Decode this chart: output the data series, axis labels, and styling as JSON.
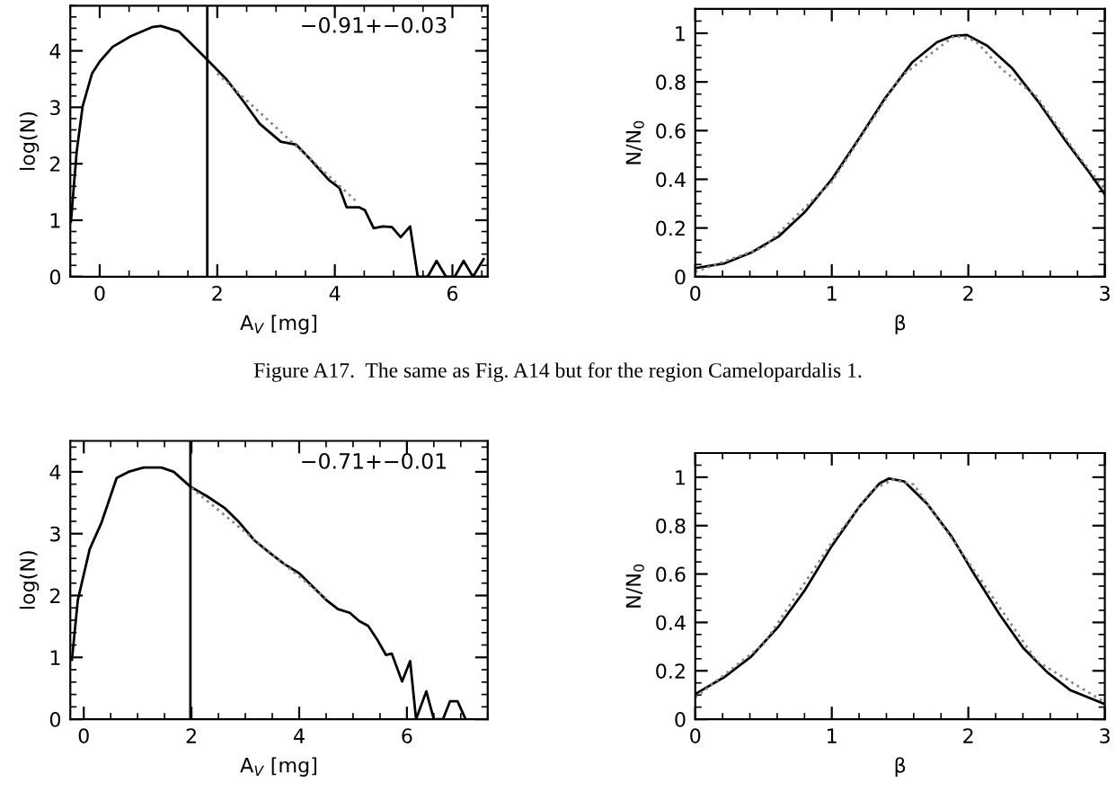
{
  "chart_data": [
    {
      "type": "line",
      "xlabel": "A$_{V}$ [mg]",
      "ylabel": "log(N)",
      "xlim": [
        -0.5,
        6.6
      ],
      "ylim": [
        0,
        4.8
      ],
      "xticks": [
        0,
        2,
        4,
        6
      ],
      "yticks": [
        0,
        1,
        2,
        3,
        4
      ],
      "annotations": [
        "−0.91+−0.03",
        "Figure A17.  The same as Fig. A14 but for the region Camelopardalis 1."
      ],
      "ref_lines": [
        {
          "axis": "x",
          "value": 1.83,
          "color": "#000000"
        }
      ],
      "series": [
        {
          "color": "#000000",
          "line_style": "solid",
          "x": [
            -0.49,
            -0.39,
            -0.29,
            -0.13,
            0,
            0.22,
            0.53,
            0.89,
            1.04,
            1.35,
            1.83,
            2.16,
            2.47,
            2.72,
            3.08,
            3.34,
            3.59,
            3.9,
            4.08,
            4.2,
            4.41,
            4.51,
            4.66,
            4.82,
            4.97,
            5.12,
            5.28,
            5.41,
            5.58,
            5.73,
            5.89,
            6.04,
            6.19,
            6.35,
            6.53
          ],
          "values": [
            0.97,
            2.23,
            3.02,
            3.6,
            3.81,
            4.07,
            4.26,
            4.42,
            4.44,
            4.34,
            3.84,
            3.49,
            3.07,
            2.71,
            2.39,
            2.34,
            2.07,
            1.71,
            1.57,
            1.23,
            1.23,
            1.18,
            0.86,
            0.89,
            0.88,
            0.7,
            0.89,
            0,
            0,
            0.28,
            0,
            0,
            0.28,
            0,
            0.31
          ]
        },
        {
          "color": "#888888",
          "line_style": "dotted",
          "x": [
            2.0,
            4.35
          ],
          "values": [
            3.6,
            1.35
          ]
        }
      ]
    },
    {
      "type": "line",
      "xlabel": "β",
      "ylabel": "N/N$_{0}$",
      "xlim": [
        0,
        3
      ],
      "ylim": [
        0,
        1.1
      ],
      "xticks": [
        0,
        1,
        2,
        3
      ],
      "yticks": [
        0,
        0.2,
        0.4,
        0.6,
        0.8,
        1
      ],
      "series": [
        {
          "color": "#000000",
          "line_style": "solid",
          "x": [
            0,
            0.21,
            0.41,
            0.61,
            0.8,
            1,
            1.2,
            1.39,
            1.59,
            1.77,
            1.88,
            1.99,
            2.14,
            2.32,
            2.51,
            2.71,
            2.89,
            3
          ],
          "values": [
            0.035,
            0.054,
            0.099,
            0.165,
            0.264,
            0.4,
            0.568,
            0.733,
            0.881,
            0.963,
            0.988,
            0.993,
            0.948,
            0.857,
            0.721,
            0.56,
            0.425,
            0.338
          ]
        },
        {
          "color": "#888888",
          "line_style": "dotted",
          "x": [
            0,
            0.5,
            1,
            1.5,
            1.9,
            2.05,
            2.25,
            2.5,
            2.8,
            3
          ],
          "values": [
            0.02,
            0.12,
            0.39,
            0.82,
            0.99,
            0.97,
            0.85,
            0.74,
            0.5,
            0.36
          ]
        }
      ]
    },
    {
      "type": "line",
      "xlabel": "A$_{V}$ [mg]",
      "ylabel": "log(N)",
      "xlim": [
        -0.25,
        7.5
      ],
      "ylim": [
        0,
        4.5
      ],
      "xticks": [
        0,
        2,
        4,
        6
      ],
      "yticks": [
        0,
        1,
        2,
        3,
        4
      ],
      "annotations": [
        "−0.71+−0.01"
      ],
      "ref_lines": [
        {
          "axis": "x",
          "value": 1.98,
          "color": "#000000"
        }
      ],
      "series": [
        {
          "color": "#000000",
          "line_style": "solid",
          "x": [
            -0.22,
            -0.11,
            0.11,
            0.33,
            0.61,
            0.83,
            1.11,
            1.44,
            1.67,
            1.98,
            2.28,
            2.61,
            2.89,
            3.17,
            3.44,
            3.72,
            4.0,
            4.28,
            4.5,
            4.72,
            4.94,
            5.11,
            5.28,
            5.44,
            5.61,
            5.72,
            5.91,
            6.06,
            6.17,
            6.36,
            6.5,
            6.67,
            6.8,
            6.94,
            7.09
          ],
          "values": [
            0.96,
            1.93,
            2.75,
            3.18,
            3.9,
            4.0,
            4.07,
            4.07,
            4.0,
            3.76,
            3.61,
            3.42,
            3.18,
            2.89,
            2.7,
            2.51,
            2.36,
            2.12,
            1.93,
            1.78,
            1.72,
            1.59,
            1.51,
            1.3,
            1.04,
            1.06,
            0.61,
            0.94,
            0,
            0.45,
            0,
            0,
            0.29,
            0.29,
            0
          ]
        },
        {
          "color": "#888888",
          "line_style": "dotted",
          "x": [
            2.0,
            4.5
          ],
          "values": [
            3.74,
            1.95
          ]
        }
      ]
    },
    {
      "type": "line",
      "xlabel": "β",
      "ylabel": "N/N$_{0}$",
      "xlim": [
        0,
        3
      ],
      "ylim": [
        0,
        1.1
      ],
      "xticks": [
        0,
        1,
        2,
        3
      ],
      "yticks": [
        0,
        0.2,
        0.4,
        0.6,
        0.8,
        1
      ],
      "series": [
        {
          "color": "#000000",
          "line_style": "solid",
          "x": [
            0,
            0.21,
            0.41,
            0.61,
            0.8,
            1,
            1.2,
            1.35,
            1.42,
            1.53,
            1.7,
            1.88,
            2.05,
            2.23,
            2.4,
            2.58,
            2.75,
            3
          ],
          "values": [
            0.104,
            0.173,
            0.259,
            0.383,
            0.531,
            0.716,
            0.877,
            0.975,
            0.995,
            0.983,
            0.889,
            0.753,
            0.593,
            0.432,
            0.296,
            0.193,
            0.119,
            0.062
          ]
        },
        {
          "color": "#888888",
          "line_style": "dotted",
          "x": [
            0,
            0.5,
            1,
            1.3,
            1.45,
            1.6,
            2,
            2.5,
            3
          ],
          "values": [
            0.09,
            0.31,
            0.73,
            0.95,
            0.99,
            0.97,
            0.65,
            0.24,
            0.07
          ]
        }
      ]
    }
  ]
}
